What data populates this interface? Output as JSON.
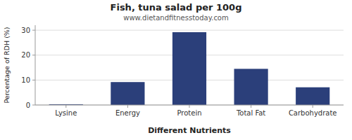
{
  "chart_data": {
    "type": "bar",
    "title": "Fish, tuna salad per 100g",
    "subtitle": "www.dietandfitnesstoday.com",
    "xlabel": "Different Nutrients",
    "ylabel": "Percentage of RDH (%)",
    "categories": [
      "Lysine",
      "Energy",
      "Protein",
      "Total Fat",
      "Carbohydrate"
    ],
    "values": [
      0.3,
      9.2,
      29.2,
      14.5,
      7.1
    ],
    "color": "#2b3f7a",
    "ylim": [
      0,
      32
    ],
    "yticks": [
      0,
      10,
      20,
      30
    ],
    "grid": true
  }
}
